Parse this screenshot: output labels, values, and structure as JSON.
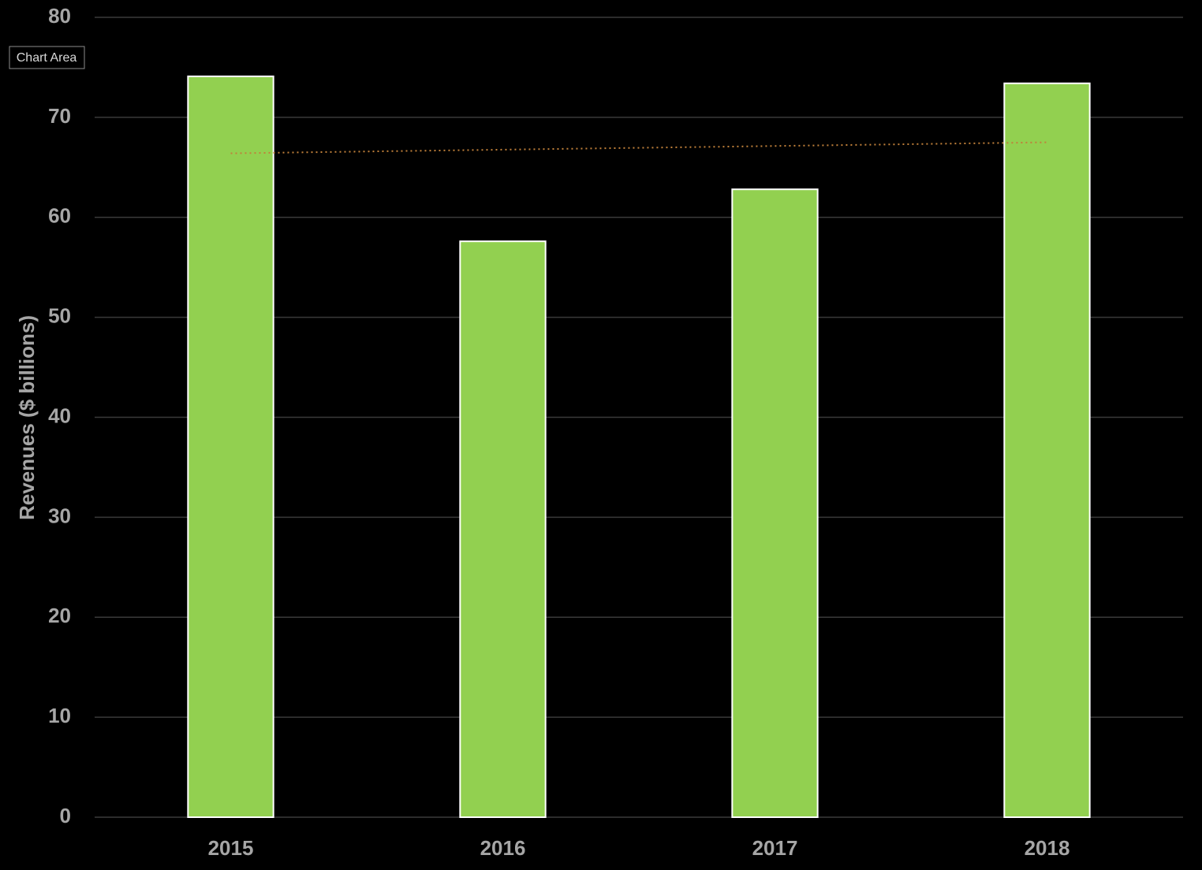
{
  "chart_data": {
    "type": "bar",
    "y_label": "Revenues ($ billions)",
    "categories": [
      "2015",
      "2016",
      "2017",
      "2018"
    ],
    "values": [
      74.1,
      57.6,
      62.8,
      73.4
    ],
    "color": "#92d050",
    "trendline": {
      "values": [
        66.4,
        67.5
      ],
      "color": "#c0803a"
    },
    "ylim": [
      0,
      80
    ],
    "yticks": [
      0,
      10,
      20,
      30,
      40,
      50,
      60,
      70,
      80
    ],
    "grid": true,
    "tooltip": "Chart Area"
  }
}
